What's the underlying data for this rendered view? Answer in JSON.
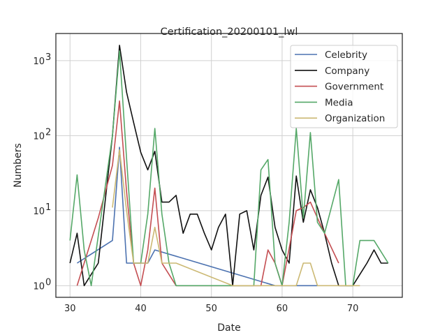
{
  "chart_data": {
    "type": "line",
    "title": "Certification_20200101_lwl",
    "xlabel": "Date",
    "ylabel": "Numbers",
    "xlim": [
      28,
      77
    ],
    "ylim": [
      0.7,
      2300
    ],
    "yscale": "log",
    "xticks": [
      30,
      40,
      50,
      60,
      70
    ],
    "yticks": [
      {
        "value": 1,
        "base": "10",
        "exp": "0"
      },
      {
        "value": 10,
        "base": "10",
        "exp": "1"
      },
      {
        "value": 100,
        "base": "10",
        "exp": "2"
      },
      {
        "value": 1000,
        "base": "10",
        "exp": "3"
      }
    ],
    "legend_position": "top-right",
    "series": [
      {
        "name": "Celebrity",
        "color": "#4c72b0",
        "points": [
          [
            31,
            2
          ],
          [
            36,
            4
          ],
          [
            37,
            70
          ],
          [
            38,
            2
          ],
          [
            41,
            2
          ],
          [
            42,
            3
          ],
          [
            59,
            1
          ],
          [
            65,
            1
          ]
        ]
      },
      {
        "name": "Company",
        "color": "#111111",
        "points": [
          [
            30,
            2
          ],
          [
            31,
            5
          ],
          [
            32,
            1
          ],
          [
            34,
            2
          ],
          [
            36,
            100
          ],
          [
            37,
            1600
          ],
          [
            38,
            380
          ],
          [
            39,
            150
          ],
          [
            40,
            60
          ],
          [
            41,
            35
          ],
          [
            42,
            62
          ],
          [
            43,
            13
          ],
          [
            44,
            13
          ],
          [
            45,
            16
          ],
          [
            46,
            5
          ],
          [
            47,
            9
          ],
          [
            48,
            9
          ],
          [
            49,
            5
          ],
          [
            50,
            3
          ],
          [
            51,
            6
          ],
          [
            52,
            9
          ],
          [
            53,
            1
          ],
          [
            54,
            9
          ],
          [
            55,
            10
          ],
          [
            56,
            3
          ],
          [
            57,
            16
          ],
          [
            58,
            28
          ],
          [
            59,
            6
          ],
          [
            60,
            3
          ],
          [
            61,
            2
          ],
          [
            62,
            29
          ],
          [
            63,
            7
          ],
          [
            64,
            19
          ],
          [
            65,
            11
          ],
          [
            66,
            5
          ],
          [
            67,
            2
          ],
          [
            68,
            1
          ],
          [
            70,
            1
          ],
          [
            72,
            2
          ],
          [
            73,
            3
          ],
          [
            74,
            2
          ],
          [
            75,
            2
          ]
        ]
      },
      {
        "name": "Government",
        "color": "#c44e52",
        "points": [
          [
            31,
            1
          ],
          [
            34,
            8
          ],
          [
            36,
            40
          ],
          [
            37,
            290
          ],
          [
            38,
            18
          ],
          [
            39,
            2
          ],
          [
            40,
            1
          ],
          [
            41,
            3
          ],
          [
            42,
            20
          ],
          [
            43,
            2
          ],
          [
            45,
            1
          ],
          [
            53,
            1
          ],
          [
            57,
            1
          ],
          [
            58,
            3
          ],
          [
            59,
            2
          ],
          [
            60,
            1
          ],
          [
            62,
            10
          ],
          [
            63,
            11
          ],
          [
            64,
            13
          ],
          [
            65,
            8
          ],
          [
            66,
            5
          ],
          [
            68,
            2
          ]
        ]
      },
      {
        "name": "Media",
        "color": "#55a868",
        "points": [
          [
            30,
            4
          ],
          [
            31,
            30
          ],
          [
            32,
            3
          ],
          [
            33,
            1
          ],
          [
            36,
            100
          ],
          [
            37,
            1350
          ],
          [
            38,
            50
          ],
          [
            39,
            2
          ],
          [
            40,
            2
          ],
          [
            41,
            9
          ],
          [
            42,
            125
          ],
          [
            43,
            9
          ],
          [
            44,
            2
          ],
          [
            45,
            1
          ],
          [
            56,
            1
          ],
          [
            57,
            35
          ],
          [
            58,
            48
          ],
          [
            59,
            2
          ],
          [
            60,
            1
          ],
          [
            61,
            7
          ],
          [
            62,
            125
          ],
          [
            63,
            8
          ],
          [
            64,
            110
          ],
          [
            65,
            7
          ],
          [
            66,
            5
          ],
          [
            68,
            26
          ],
          [
            69,
            1
          ],
          [
            70,
            1
          ],
          [
            71,
            4
          ],
          [
            73,
            4
          ],
          [
            75,
            2
          ]
        ]
      },
      {
        "name": "Organization",
        "color": "#ccb974",
        "points": [
          [
            36,
            11
          ],
          [
            37,
            65
          ],
          [
            38,
            10
          ],
          [
            39,
            2
          ],
          [
            41,
            2
          ],
          [
            42,
            6
          ],
          [
            43,
            2
          ],
          [
            45,
            2
          ],
          [
            53,
            1
          ],
          [
            62,
            1
          ],
          [
            63,
            2
          ],
          [
            64,
            2
          ],
          [
            65,
            1
          ],
          [
            71,
            1
          ]
        ]
      }
    ]
  }
}
